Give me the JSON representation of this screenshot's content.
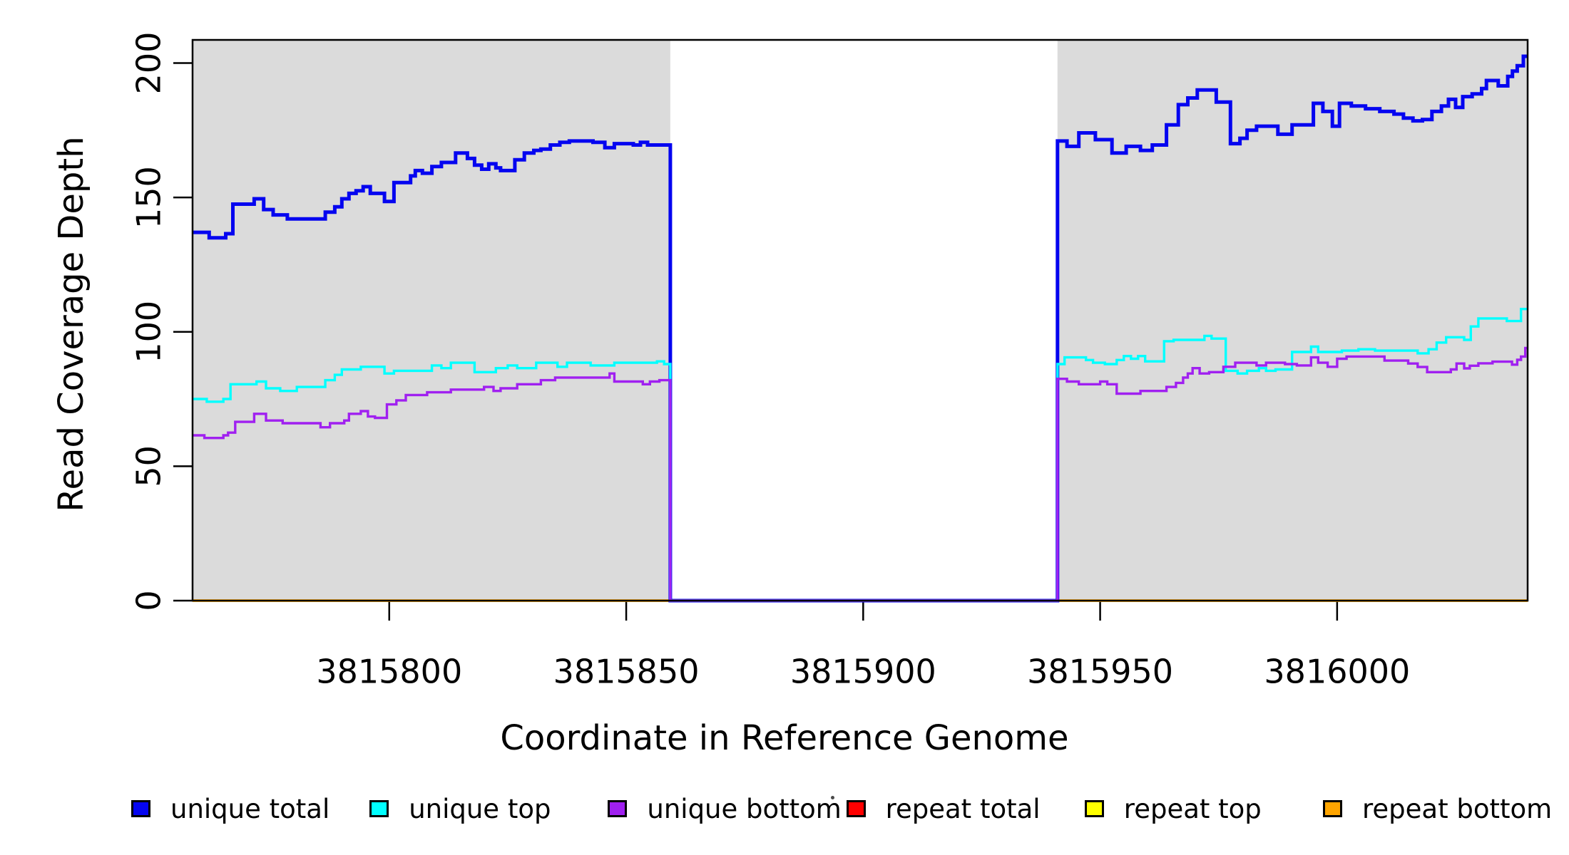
{
  "axes": {
    "x_title": "Coordinate in Reference Genome",
    "y_title": "Read Coverage Depth",
    "x_ticks": [
      3815800,
      3815850,
      3815900,
      3815950,
      3816000
    ],
    "y_ticks": [
      0,
      50,
      100,
      150,
      200
    ]
  },
  "legend": {
    "items": [
      {
        "label": "unique total",
        "color": "#0505F0"
      },
      {
        "label": "unique top",
        "color": "#00FFFF"
      },
      {
        "label": "unique bottom",
        "color": "#A020F0"
      },
      {
        "label": "repeat total",
        "color": "#FF0000"
      },
      {
        "label": "repeat top",
        "color": "#FFFF00"
      },
      {
        "label": "repeat bottom",
        "color": "#FFA500"
      }
    ]
  },
  "colors": {
    "shaded_region": "#DBDBDB",
    "gap_region": "#FFFFFF",
    "frame": "#000000"
  },
  "chart_data": {
    "type": "line",
    "subtype": "step-after",
    "title": "",
    "xlabel": "Coordinate in Reference Genome",
    "ylabel": "Read Coverage Depth",
    "xlim": [
      3815758.5,
      3816040.2
    ],
    "ylim": [
      0,
      208.6
    ],
    "grid": false,
    "legend_position": "bottom",
    "shaded_regions": [
      {
        "x0": 3815758.5,
        "x1": 3815859.3,
        "color": "#DBDBDB"
      },
      {
        "x0": 3815941.0,
        "x1": 3816040.2,
        "color": "#DBDBDB"
      }
    ],
    "coverage_gap": {
      "x0": 3815859.3,
      "x1": 3815941.0
    },
    "series": [
      {
        "name": "repeat total",
        "color": "#FF0000",
        "width": 3,
        "points": [
          [
            3815758.5,
            0
          ],
          [
            3816040.2,
            0
          ]
        ]
      },
      {
        "name": "repeat top",
        "color": "#FFFF00",
        "width": 3,
        "points": [
          [
            3815758.5,
            0
          ],
          [
            3816040.2,
            0
          ]
        ]
      },
      {
        "name": "repeat bottom",
        "color": "#FFA500",
        "width": 3.8,
        "points": [
          [
            3815758.5,
            0
          ],
          [
            3816040.2,
            0
          ]
        ]
      },
      {
        "name": "unique total",
        "color": "#0505F0",
        "width": 5,
        "points": [
          [
            3815758.5,
            137
          ],
          [
            3815762,
            135
          ],
          [
            3815765.5,
            136.5
          ],
          [
            3815767,
            147.5
          ],
          [
            3815771.5,
            149.5
          ],
          [
            3815773.5,
            145.5
          ],
          [
            3815775.5,
            143.5
          ],
          [
            3815778.5,
            142
          ],
          [
            3815786.5,
            144.5
          ],
          [
            3815788.5,
            146.5
          ],
          [
            3815790,
            149.5
          ],
          [
            3815791.5,
            151.5
          ],
          [
            3815793,
            152.5
          ],
          [
            3815794.5,
            154
          ],
          [
            3815796,
            151.5
          ],
          [
            3815799,
            148.5
          ],
          [
            3815801,
            155.5
          ],
          [
            3815804.5,
            158
          ],
          [
            3815805.5,
            160
          ],
          [
            3815807,
            159
          ],
          [
            3815809,
            161.5
          ],
          [
            3815811,
            163
          ],
          [
            3815814,
            166.5
          ],
          [
            3815816.5,
            164.5
          ],
          [
            3815818,
            162
          ],
          [
            3815819.5,
            160.5
          ],
          [
            3815821,
            162.5
          ],
          [
            3815822.5,
            161
          ],
          [
            3815823.5,
            160
          ],
          [
            3815826.5,
            164
          ],
          [
            3815828.5,
            166.5
          ],
          [
            3815830.5,
            167.5
          ],
          [
            3815832,
            168
          ],
          [
            3815834,
            169.5
          ],
          [
            3815836,
            170.5
          ],
          [
            3815838,
            171
          ],
          [
            3815843,
            170.5
          ],
          [
            3815845.5,
            168.5
          ],
          [
            3815847.5,
            170
          ],
          [
            3815851.5,
            169.5
          ],
          [
            3815853,
            170.5
          ],
          [
            3815854.5,
            169.5
          ],
          [
            3815859.3,
            0
          ],
          [
            3815941,
            171
          ],
          [
            3815943,
            169
          ],
          [
            3815945.5,
            174
          ],
          [
            3815949,
            171.5
          ],
          [
            3815952.5,
            166.5
          ],
          [
            3815955.5,
            169
          ],
          [
            3815958.5,
            167.5
          ],
          [
            3815961,
            169.5
          ],
          [
            3815964,
            177
          ],
          [
            3815966.5,
            184.5
          ],
          [
            3815968.5,
            187
          ],
          [
            3815970.5,
            190
          ],
          [
            3815974.5,
            185.5
          ],
          [
            3815977.5,
            170
          ],
          [
            3815979.5,
            172
          ],
          [
            3815981,
            175
          ],
          [
            3815983,
            176.5
          ],
          [
            3815987.5,
            173.5
          ],
          [
            3815990.5,
            177
          ],
          [
            3815995,
            185
          ],
          [
            3815997,
            182
          ],
          [
            3815999,
            176.5
          ],
          [
            3816000.5,
            185
          ],
          [
            3816003,
            184
          ],
          [
            3816006,
            183
          ],
          [
            3816009,
            182
          ],
          [
            3816012,
            181
          ],
          [
            3816014,
            179.5
          ],
          [
            3816016,
            178.5
          ],
          [
            3816018,
            179
          ],
          [
            3816020,
            182
          ],
          [
            3816022,
            184
          ],
          [
            3816023.5,
            186.5
          ],
          [
            3816025,
            183.5
          ],
          [
            3816026.5,
            187.5
          ],
          [
            3816028.5,
            188.5
          ],
          [
            3816030.5,
            190.5
          ],
          [
            3816031.5,
            193.5
          ],
          [
            3816034,
            191.5
          ],
          [
            3816036,
            195
          ],
          [
            3816037,
            197
          ],
          [
            3816038,
            199
          ],
          [
            3816039.3,
            202.5
          ]
        ]
      },
      {
        "name": "unique top",
        "color": "#00FFFF",
        "width": 3.4,
        "points": [
          [
            3815758.5,
            75
          ],
          [
            3815761.5,
            74
          ],
          [
            3815765,
            75
          ],
          [
            3815766.5,
            80.5
          ],
          [
            3815772,
            81.5
          ],
          [
            3815774,
            79
          ],
          [
            3815777,
            78
          ],
          [
            3815780.5,
            79.5
          ],
          [
            3815786.5,
            82
          ],
          [
            3815788.5,
            84
          ],
          [
            3815790,
            86
          ],
          [
            3815794,
            87
          ],
          [
            3815799,
            84.5
          ],
          [
            3815801,
            85.5
          ],
          [
            3815809,
            87.5
          ],
          [
            3815811,
            86.5
          ],
          [
            3815813,
            88.5
          ],
          [
            3815818,
            85
          ],
          [
            3815822.5,
            86.5
          ],
          [
            3815825,
            87.5
          ],
          [
            3815827,
            86.5
          ],
          [
            3815831,
            88.5
          ],
          [
            3815835.5,
            87
          ],
          [
            3815837.5,
            88.5
          ],
          [
            3815842.5,
            87.5
          ],
          [
            3815847.5,
            88.5
          ],
          [
            3815856.5,
            89
          ],
          [
            3815858,
            88
          ],
          [
            3815859.3,
            0
          ],
          [
            3815941,
            88
          ],
          [
            3815942.5,
            90.5
          ],
          [
            3815947,
            89.5
          ],
          [
            3815948.5,
            88.5
          ],
          [
            3815951,
            88
          ],
          [
            3815953.5,
            89.5
          ],
          [
            3815955,
            91
          ],
          [
            3815956.5,
            90
          ],
          [
            3815958,
            91
          ],
          [
            3815959.5,
            89
          ],
          [
            3815963.5,
            96.5
          ],
          [
            3815965.5,
            97
          ],
          [
            3815972,
            98.5
          ],
          [
            3815973.5,
            97.5
          ],
          [
            3815976.5,
            85.5
          ],
          [
            3815979,
            84.5
          ],
          [
            3815981,
            85.5
          ],
          [
            3815983.5,
            86.5
          ],
          [
            3815985,
            85.5
          ],
          [
            3815987,
            86
          ],
          [
            3815990.5,
            92.5
          ],
          [
            3815994.5,
            94.5
          ],
          [
            3815996,
            92.5
          ],
          [
            3816001,
            93
          ],
          [
            3816004.5,
            93.5
          ],
          [
            3816008,
            93
          ],
          [
            3816017,
            92
          ],
          [
            3816019.3,
            93.5
          ],
          [
            3816021,
            96
          ],
          [
            3816023,
            98
          ],
          [
            3816026.8,
            97
          ],
          [
            3816028.2,
            102
          ],
          [
            3816029.8,
            105
          ],
          [
            3816035.8,
            104
          ],
          [
            3816038.8,
            108.5
          ]
        ]
      },
      {
        "name": "unique bottom",
        "color": "#A020F0",
        "width": 3.4,
        "points": [
          [
            3815758.5,
            61.5
          ],
          [
            3815761,
            60.5
          ],
          [
            3815765,
            61.5
          ],
          [
            3815766,
            62.5
          ],
          [
            3815767.5,
            66.5
          ],
          [
            3815771.5,
            69.5
          ],
          [
            3815774,
            67
          ],
          [
            3815777.5,
            66
          ],
          [
            3815785.5,
            64.5
          ],
          [
            3815787.5,
            66
          ],
          [
            3815790.5,
            67
          ],
          [
            3815791.5,
            69.5
          ],
          [
            3815794,
            70.5
          ],
          [
            3815795.5,
            68.5
          ],
          [
            3815797,
            68
          ],
          [
            3815799.5,
            73
          ],
          [
            3815801.5,
            74.5
          ],
          [
            3815803.5,
            76.5
          ],
          [
            3815808,
            77.5
          ],
          [
            3815813,
            78.5
          ],
          [
            3815820,
            79.5
          ],
          [
            3815822,
            78
          ],
          [
            3815823.5,
            79
          ],
          [
            3815827,
            80.5
          ],
          [
            3815832,
            82
          ],
          [
            3815835,
            83
          ],
          [
            3815846.5,
            84.5
          ],
          [
            3815847.5,
            81.5
          ],
          [
            3815853.5,
            80.5
          ],
          [
            3815855,
            81.5
          ],
          [
            3815857,
            82
          ],
          [
            3815859.3,
            0
          ],
          [
            3815941,
            82.5
          ],
          [
            3815943,
            81.5
          ],
          [
            3815945.5,
            80.5
          ],
          [
            3815950,
            81.5
          ],
          [
            3815951.5,
            80.5
          ],
          [
            3815953.5,
            77
          ],
          [
            3815958.5,
            78
          ],
          [
            3815964,
            79.5
          ],
          [
            3815966,
            81
          ],
          [
            3815967.5,
            83
          ],
          [
            3815968.5,
            84.5
          ],
          [
            3815969.5,
            86.5
          ],
          [
            3815971,
            84.5
          ],
          [
            3815973,
            85
          ],
          [
            3815976,
            87
          ],
          [
            3815978.5,
            88.5
          ],
          [
            3815983,
            87.5
          ],
          [
            3815985,
            88.5
          ],
          [
            3815989,
            88
          ],
          [
            3815991.5,
            87.5
          ],
          [
            3815994.5,
            90.5
          ],
          [
            3815996,
            88.5
          ],
          [
            3815998,
            87
          ],
          [
            3816000,
            90
          ],
          [
            3816002,
            90.8
          ],
          [
            3816010,
            89.3
          ],
          [
            3816015,
            88.2
          ],
          [
            3816017,
            86.9
          ],
          [
            3816019,
            85
          ],
          [
            3816024,
            86
          ],
          [
            3816025.2,
            88.2
          ],
          [
            3816026.8,
            86.4
          ],
          [
            3816028,
            87.4
          ],
          [
            3816029.8,
            88.3
          ],
          [
            3816032.8,
            88.9
          ],
          [
            3816036.9,
            87.8
          ],
          [
            3816038,
            89.6
          ],
          [
            3816038.8,
            90.8
          ],
          [
            3816039.7,
            94
          ]
        ]
      }
    ]
  }
}
